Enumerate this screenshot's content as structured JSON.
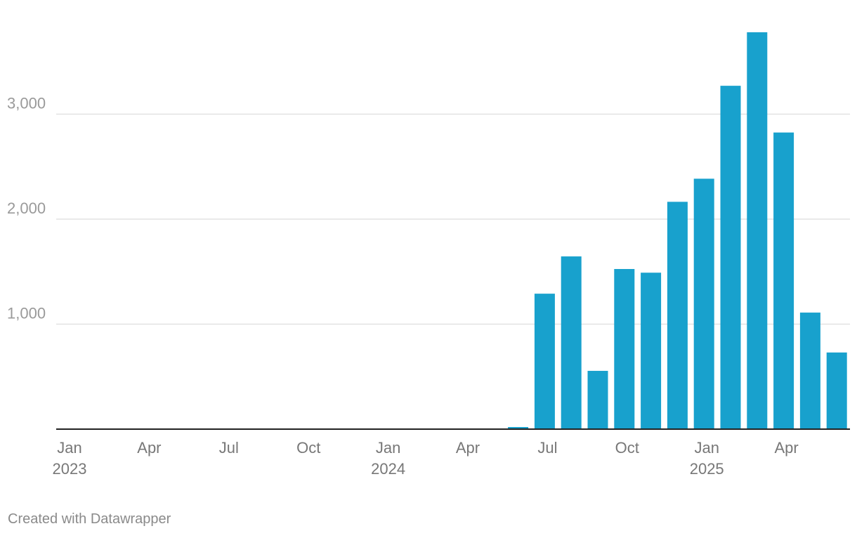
{
  "chart_data": {
    "type": "bar",
    "x": [
      "2023-01",
      "2023-02",
      "2023-03",
      "2023-04",
      "2023-05",
      "2023-06",
      "2023-07",
      "2023-08",
      "2023-09",
      "2023-10",
      "2023-11",
      "2023-12",
      "2024-01",
      "2024-02",
      "2024-03",
      "2024-04",
      "2024-05",
      "2024-06",
      "2024-07",
      "2024-08",
      "2024-09",
      "2024-10",
      "2024-11",
      "2024-12",
      "2025-01",
      "2025-02",
      "2025-03",
      "2025-04",
      "2025-05",
      "2025-06"
    ],
    "values": [
      0,
      0,
      0,
      0,
      0,
      0,
      0,
      0,
      0,
      0,
      0,
      0,
      0,
      0,
      0,
      0,
      0,
      20,
      1290,
      1645,
      555,
      1525,
      1490,
      2165,
      2385,
      3270,
      3780,
      2825,
      1110,
      730
    ],
    "ylim": [
      0,
      3800
    ],
    "yticks": [
      {
        "value": 1000,
        "label": "1,000"
      },
      {
        "value": 2000,
        "label": "2,000"
      },
      {
        "value": 3000,
        "label": "3,000"
      }
    ],
    "xticks": [
      {
        "x": "2023-01",
        "label": "Jan",
        "year": "2023"
      },
      {
        "x": "2023-04",
        "label": "Apr",
        "year": ""
      },
      {
        "x": "2023-07",
        "label": "Jul",
        "year": ""
      },
      {
        "x": "2023-10",
        "label": "Oct",
        "year": ""
      },
      {
        "x": "2024-01",
        "label": "Jan",
        "year": "2024"
      },
      {
        "x": "2024-04",
        "label": "Apr",
        "year": ""
      },
      {
        "x": "2024-07",
        "label": "Jul",
        "year": ""
      },
      {
        "x": "2024-10",
        "label": "Oct",
        "year": ""
      },
      {
        "x": "2025-01",
        "label": "Jan",
        "year": "2025"
      },
      {
        "x": "2025-04",
        "label": "Apr",
        "year": ""
      }
    ],
    "grid": true,
    "title": "",
    "xlabel": "",
    "ylabel": "",
    "bar_color": "#18a1cd"
  },
  "footer": {
    "credit": "Created with Datawrapper"
  }
}
